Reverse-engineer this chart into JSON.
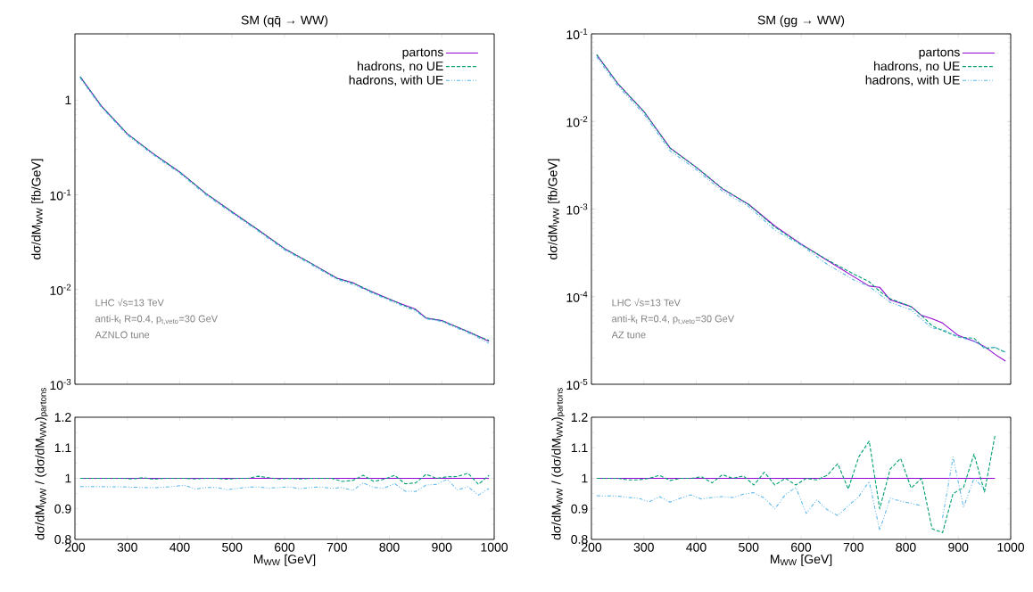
{
  "chart_data": [
    {
      "type": "line",
      "title": "SM (qq̄ → WW)",
      "ylabel": "dσ/dM$_{WW}$ [fb/GeV]",
      "log": true,
      "legend": "top right",
      "tick_labels": "y",
      "xlim": [
        200,
        1000
      ],
      "xticks": [
        200,
        300,
        400,
        500,
        600,
        700,
        800,
        900,
        1000
      ],
      "ylim": [
        0.001,
        5
      ],
      "yticks": [
        {
          "value": 0.001,
          "label": "10$^{-3}$"
        },
        {
          "value": 0.01,
          "label": "10$^{-2}$"
        },
        {
          "value": 0.1,
          "label": "10$^{-1}$"
        },
        1
      ],
      "x": [
        210,
        250,
        300,
        350,
        400,
        450,
        500,
        550,
        600,
        650,
        700,
        730,
        750,
        770,
        810,
        830,
        850,
        870,
        900,
        930,
        950,
        970,
        990
      ],
      "series": [
        {
          "name": "partons",
          "color": "#9400d3",
          "line_style": "solid",
          "values": [
            1.76,
            0.87,
            0.44,
            0.27,
            0.174,
            0.103,
            0.066,
            0.0425,
            0.027,
            0.019,
            0.0132,
            0.0118,
            0.0104,
            0.0093,
            0.0075,
            0.0068,
            0.0062,
            0.005,
            0.0047,
            0.004,
            0.0036,
            0.0032,
            0.00285
          ]
        },
        {
          "name": "hadrons, no UE",
          "color": "#009e73",
          "line_style": "dashed",
          "values": [
            1.76,
            0.87,
            0.44,
            0.27,
            0.174,
            0.103,
            0.066,
            0.0425,
            0.027,
            0.019,
            0.0131,
            0.0117,
            0.0105,
            0.0092,
            0.0075,
            0.0067,
            0.0061,
            0.005,
            0.0047,
            0.004,
            0.0036,
            0.0032,
            0.0029
          ]
        },
        {
          "name": "hadrons, with UE",
          "color": "#56b4e9",
          "line_style": "dashdot",
          "values": [
            1.71,
            0.845,
            0.427,
            0.262,
            0.169,
            0.0995,
            0.064,
            0.0412,
            0.0262,
            0.0184,
            0.0128,
            0.0113,
            0.0102,
            0.009,
            0.0073,
            0.0065,
            0.006,
            0.0049,
            0.0046,
            0.0039,
            0.0035,
            0.0031,
            0.0027
          ]
        }
      ],
      "annotations": [
        "LHC √s=13 TeV",
        "anti-k$_{t}$ R=0.4, p$_{t,veto}$=30 GeV",
        "AZNLO tune"
      ]
    },
    {
      "type": "line",
      "title": "SM (gg → WW)",
      "ylabel": "dσ/dM$_{WW}$ [fb/GeV]",
      "log": true,
      "legend": "top right",
      "tick_labels": "y",
      "xlim": [
        200,
        1000
      ],
      "xticks": [
        200,
        300,
        400,
        500,
        600,
        700,
        800,
        900,
        1000
      ],
      "ylim": [
        1e-05,
        0.1
      ],
      "yticks": [
        {
          "value": 1e-05,
          "label": "10$^{-5}$"
        },
        {
          "value": 0.0001,
          "label": "10$^{-4}$"
        },
        {
          "value": 0.001,
          "label": "10$^{-3}$"
        },
        {
          "value": 0.01,
          "label": "10$^{-2}$"
        },
        {
          "value": 0.1,
          "label": "10$^{-1}$"
        }
      ],
      "x": [
        210,
        250,
        300,
        350,
        400,
        450,
        500,
        550,
        600,
        650,
        700,
        730,
        750,
        770,
        810,
        830,
        850,
        870,
        900,
        930,
        950,
        970,
        990
      ],
      "series": [
        {
          "name": "partons",
          "color": "#9400d3",
          "line_style": "solid",
          "values": [
            0.0578,
            0.0272,
            0.013,
            0.005,
            0.003,
            0.0017,
            0.00113,
            0.00064,
            0.0004,
            0.00026,
            0.00017,
            0.000132,
            0.000128,
            9.2e-05,
            7.7e-05,
            6.1e-05,
            5.6e-05,
            5e-05,
            3.6e-05,
            3.1e-05,
            2.7e-05,
            2.2e-05,
            1.84e-05
          ]
        },
        {
          "name": "hadrons, no UE",
          "color": "#009e73",
          "line_style": "dashed",
          "values": [
            0.0578,
            0.0272,
            0.013,
            0.00495,
            0.003,
            0.00172,
            0.00113,
            0.000624,
            0.000394,
            0.000263,
            0.000182,
            0.000148,
            0.000115,
            9.48e-05,
            7.7e-05,
            6.1e-05,
            4.65e-05,
            4.1e-05,
            3.46e-05,
            3.35e-05,
            2.57e-05,
            2.64e-05,
            2.3e-05
          ]
        },
        {
          "name": "hadrons, with UE",
          "color": "#56b4e9",
          "line_style": "dashdot",
          "values": [
            0.0543,
            0.0256,
            0.0122,
            0.00463,
            0.00282,
            0.0016,
            0.00107,
            0.000576,
            0.000388,
            0.000234,
            0.000156,
            0.000131,
            0.000106,
            8.6e-05,
            7.08e-05,
            5.55e-05,
            4.37e-05,
            4.25e-05,
            3.49e-05,
            3.1e-05,
            2.62e-05,
            2.64e-05,
            2.34e-05
          ]
        }
      ],
      "annotations": [
        "LHC √s=13 TeV",
        "anti-k$_{t}$ R=0.4, p$_{t,veto}$=30 GeV",
        "AZ tune"
      ]
    },
    {
      "type": "line",
      "xlabel": "M$_{WW}$ [GeV]",
      "ylabel": "dσ/dM$_{WW}$ / (dσ/dM$_{WW}$)$_{partons}$",
      "xlim": [
        200,
        1000
      ],
      "xticks": [
        200,
        300,
        400,
        500,
        600,
        700,
        800,
        900,
        1000
      ],
      "ylim": [
        0.8,
        1.2
      ],
      "yticks": [
        0.8,
        0.9,
        1,
        1.1,
        1.2
      ],
      "x": [
        210,
        230,
        250,
        270,
        290,
        310,
        330,
        350,
        370,
        390,
        410,
        430,
        450,
        470,
        490,
        510,
        530,
        550,
        570,
        590,
        610,
        630,
        650,
        670,
        690,
        710,
        730,
        750,
        770,
        790,
        810,
        830,
        850,
        870,
        890,
        910,
        930,
        950,
        970,
        990
      ],
      "series": [
        {
          "color": "#9400d3",
          "line_style": "solid",
          "values": [
            1,
            1,
            1,
            1,
            1,
            1,
            1,
            1,
            1,
            1,
            1,
            1,
            1,
            1,
            1,
            1,
            1,
            1,
            1,
            1,
            1,
            1,
            1,
            1,
            1,
            1,
            1,
            1,
            1,
            1,
            1,
            1,
            1,
            1,
            1,
            1,
            1,
            1,
            1,
            1
          ]
        },
        {
          "color": "#009e73",
          "line_style": "dashed",
          "values": [
            1.0,
            1.0,
            1.0,
            1.0,
            1.0,
            0.998,
            1.002,
            0.997,
            1.0,
            1.0,
            1.0,
            0.998,
            1.0,
            1.0,
            0.997,
            1.0,
            1.0,
            1.007,
            1.002,
            0.998,
            1.0,
            0.998,
            1.0,
            1.0,
            1.0,
            0.99,
            0.993,
            1.01,
            0.99,
            0.997,
            1.01,
            0.982,
            0.985,
            1.013,
            1.0,
            1.005,
            1.006,
            1.017,
            0.98,
            1.01
          ]
        },
        {
          "color": "#56b4e9",
          "line_style": "dashdot",
          "values": [
            0.973,
            0.973,
            0.973,
            0.972,
            0.972,
            0.971,
            0.97,
            0.969,
            0.971,
            0.974,
            0.977,
            0.965,
            0.97,
            0.97,
            0.963,
            0.967,
            0.971,
            0.972,
            0.968,
            0.97,
            0.972,
            0.966,
            0.97,
            0.972,
            0.967,
            0.97,
            0.96,
            0.985,
            0.97,
            0.968,
            0.983,
            0.958,
            0.957,
            0.978,
            0.98,
            0.997,
            0.962,
            0.972,
            0.945,
            0.967
          ]
        }
      ]
    },
    {
      "type": "line",
      "xlabel": "M$_{WW}$ [GeV]",
      "ylabel": "dσ/dM$_{WW}$ / (dσ/dM$_{WW}$)$_{partons}$",
      "xlim": [
        200,
        1000
      ],
      "xticks": [
        200,
        300,
        400,
        500,
        600,
        700,
        800,
        900,
        1000
      ],
      "ylim": [
        0.8,
        1.2
      ],
      "yticks": [
        0.8,
        0.9,
        1,
        1.1,
        1.2
      ],
      "x": [
        210,
        230,
        250,
        270,
        290,
        310,
        330,
        350,
        370,
        390,
        410,
        430,
        450,
        470,
        490,
        510,
        530,
        550,
        570,
        590,
        610,
        630,
        650,
        670,
        690,
        710,
        730,
        750,
        770,
        790,
        810,
        830,
        850,
        870,
        890,
        910,
        930,
        950,
        970
      ],
      "series": [
        {
          "color": "#9400d3",
          "line_style": "solid",
          "values": [
            1,
            1,
            1,
            1,
            1,
            1,
            1,
            1,
            1,
            1,
            1,
            1,
            1,
            1,
            1,
            1,
            1,
            1,
            1,
            1,
            1,
            1,
            1,
            1,
            1,
            1,
            1,
            1,
            1,
            1,
            1,
            1,
            1,
            1,
            1,
            1,
            1,
            1,
            1
          ]
        },
        {
          "color": "#009e73",
          "line_style": "dashed",
          "values": [
            1.0,
            1.0,
            1.0,
            0.995,
            0.995,
            1.0,
            1.01,
            0.993,
            1.0,
            1.0,
            1.005,
            0.985,
            1.012,
            1.0,
            1.008,
            0.978,
            1.02,
            0.978,
            1.0,
            0.978,
            1.0,
            0.995,
            1.01,
            1.048,
            0.965,
            1.07,
            1.122,
            0.9,
            1.03,
            1.065,
            0.968,
            1.0,
            0.835,
            0.822,
            0.95,
            0.97,
            1.08,
            0.955,
            1.14
          ]
        },
        {
          "color": "#56b4e9",
          "line_style": "dashdot",
          "values": [
            0.943,
            0.942,
            0.942,
            0.937,
            0.935,
            0.923,
            0.94,
            0.922,
            0.935,
            0.946,
            0.932,
            0.937,
            0.94,
            0.937,
            0.948,
            0.953,
            0.935,
            0.9,
            0.947,
            0.97,
            0.885,
            0.93,
            0.897,
            0.878,
            0.91,
            0.94,
            0.99,
            0.83,
            0.935,
            0.925,
            0.918,
            0.91,
            null,
            0.87,
            1.07,
            0.905,
            1.0,
            0.965,
            null
          ]
        }
      ]
    }
  ]
}
